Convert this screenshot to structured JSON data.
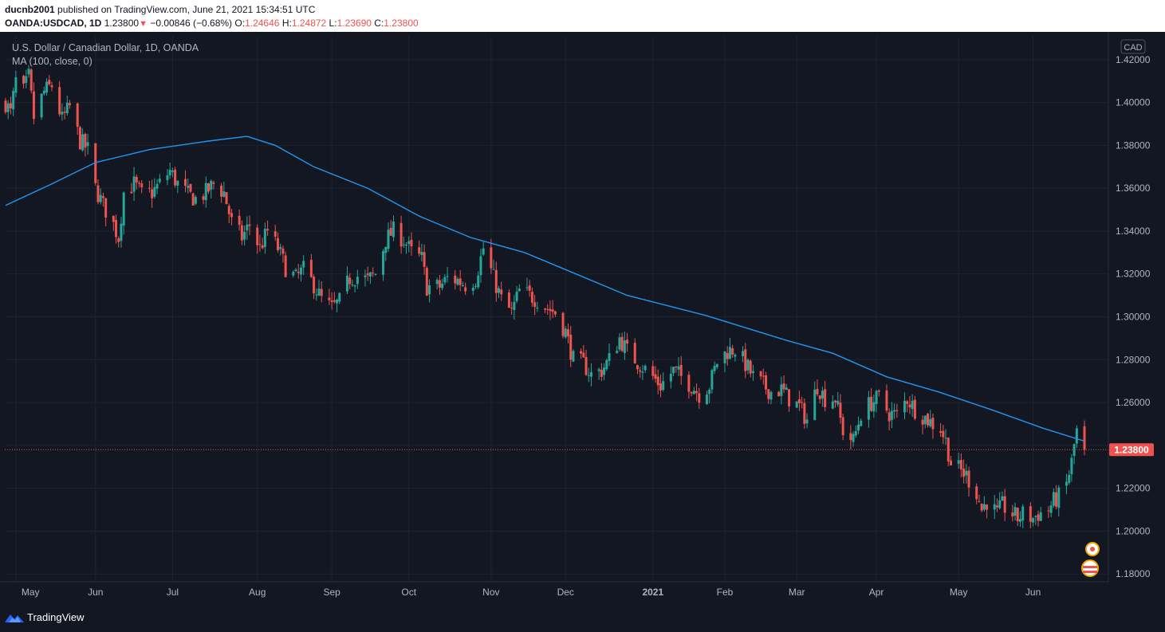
{
  "header": {
    "user": "ducnb2001",
    "published": "published on TradingView.com, June 21, 2021 15:34:51 UTC",
    "symbol": "OANDA:USDCAD, 1D",
    "last": "1.23800",
    "change": "−0.00846 (−0.68%)",
    "o_label": "O:",
    "o": "1.24646",
    "h_label": "H:",
    "h": "1.24872",
    "l_label": "L:",
    "l": "1.23690",
    "c_label": "C:",
    "c": "1.23800"
  },
  "legend": {
    "title": "U.S. Dollar / Canadian Dollar, 1D, OANDA",
    "indicator": "MA (100, close, 0)"
  },
  "footer": {
    "brand": "TradingView"
  },
  "chart_data": {
    "type": "candlestick",
    "currency_label": "CAD",
    "last_price_label": "1.23800",
    "last_price": 1.238,
    "ylim": [
      1.176,
      1.4255
    ],
    "y_ticks": [
      1.18,
      1.2,
      1.22,
      1.24,
      1.26,
      1.28,
      1.3,
      1.32,
      1.34,
      1.36,
      1.38,
      1.4,
      1.42
    ],
    "y_tick_labels": [
      "1.18000",
      "1.20000",
      "1.22000",
      "1.24000",
      "1.26000",
      "1.28000",
      "1.30000",
      "1.32000",
      "1.34000",
      "1.36000",
      "1.38000",
      "1.40000",
      "1.42000"
    ],
    "x_tick_labels": [
      "May",
      "Jun",
      "Jul",
      "Aug",
      "Sep",
      "Oct",
      "Nov",
      "Dec",
      "2021",
      "Feb",
      "Mar",
      "Apr",
      "May",
      "Jun"
    ],
    "x_tick_dates": [
      "2020-05-01",
      "2020-06-01",
      "2020-07-01",
      "2020-08-03",
      "2020-09-01",
      "2020-10-01",
      "2020-11-02",
      "2020-12-01",
      "2021-01-04",
      "2021-02-01",
      "2021-03-01",
      "2021-04-01",
      "2021-05-03",
      "2021-06-01"
    ],
    "close_path": [
      [
        "2020-04-27",
        1.4
      ],
      [
        "2020-04-29",
        1.395
      ],
      [
        "2020-05-01",
        1.41
      ],
      [
        "2020-05-04",
        1.405
      ],
      [
        "2020-05-06",
        1.412
      ],
      [
        "2020-05-08",
        1.393
      ],
      [
        "2020-05-12",
        1.405
      ],
      [
        "2020-05-15",
        1.408
      ],
      [
        "2020-05-19",
        1.392
      ],
      [
        "2020-05-22",
        1.398
      ],
      [
        "2020-05-26",
        1.382
      ],
      [
        "2020-05-29",
        1.378
      ],
      [
        "2020-06-01",
        1.36
      ],
      [
        "2020-06-04",
        1.352
      ],
      [
        "2020-06-08",
        1.343
      ],
      [
        "2020-06-10",
        1.337
      ],
      [
        "2020-06-12",
        1.358
      ],
      [
        "2020-06-16",
        1.362
      ],
      [
        "2020-06-19",
        1.357
      ],
      [
        "2020-06-23",
        1.358
      ],
      [
        "2020-06-26",
        1.362
      ],
      [
        "2020-06-30",
        1.368
      ],
      [
        "2020-07-03",
        1.362
      ],
      [
        "2020-07-07",
        1.357
      ],
      [
        "2020-07-10",
        1.355
      ],
      [
        "2020-07-14",
        1.358
      ],
      [
        "2020-07-17",
        1.362
      ],
      [
        "2020-07-21",
        1.358
      ],
      [
        "2020-07-24",
        1.344
      ],
      [
        "2020-07-28",
        1.337
      ],
      [
        "2020-07-31",
        1.343
      ],
      [
        "2020-08-04",
        1.332
      ],
      [
        "2020-08-07",
        1.34
      ],
      [
        "2020-08-11",
        1.332
      ],
      [
        "2020-08-14",
        1.323
      ],
      [
        "2020-08-18",
        1.318
      ],
      [
        "2020-08-21",
        1.322
      ],
      [
        "2020-08-25",
        1.315
      ],
      [
        "2020-08-28",
        1.308
      ],
      [
        "2020-09-01",
        1.304
      ],
      [
        "2020-09-04",
        1.307
      ],
      [
        "2020-09-08",
        1.318
      ],
      [
        "2020-09-11",
        1.319
      ],
      [
        "2020-09-15",
        1.317
      ],
      [
        "2020-09-18",
        1.32
      ],
      [
        "2020-09-22",
        1.336
      ],
      [
        "2020-09-25",
        1.34
      ],
      [
        "2020-09-29",
        1.336
      ],
      [
        "2020-10-02",
        1.33
      ],
      [
        "2020-10-06",
        1.327
      ],
      [
        "2020-10-08",
        1.314
      ],
      [
        "2020-10-13",
        1.314
      ],
      [
        "2020-10-16",
        1.318
      ],
      [
        "2020-10-20",
        1.317
      ],
      [
        "2020-10-23",
        1.315
      ],
      [
        "2020-10-27",
        1.318
      ],
      [
        "2020-10-30",
        1.332
      ],
      [
        "2020-11-03",
        1.318
      ],
      [
        "2020-11-06",
        1.308
      ],
      [
        "2020-11-10",
        1.302
      ],
      [
        "2020-11-13",
        1.312
      ],
      [
        "2020-11-17",
        1.31
      ],
      [
        "2020-11-20",
        1.308
      ],
      [
        "2020-11-24",
        1.304
      ],
      [
        "2020-11-27",
        1.302
      ],
      [
        "2020-12-01",
        1.293
      ],
      [
        "2020-12-04",
        1.28
      ],
      [
        "2020-12-08",
        1.278
      ],
      [
        "2020-12-11",
        1.273
      ],
      [
        "2020-12-15",
        1.275
      ],
      [
        "2020-12-18",
        1.28
      ],
      [
        "2020-12-22",
        1.29
      ],
      [
        "2020-12-25",
        1.284
      ],
      [
        "2020-12-29",
        1.279
      ],
      [
        "2021-01-04",
        1.272
      ],
      [
        "2021-01-07",
        1.268
      ],
      [
        "2021-01-12",
        1.275
      ],
      [
        "2021-01-15",
        1.272
      ],
      [
        "2021-01-19",
        1.268
      ],
      [
        "2021-01-22",
        1.264
      ],
      [
        "2021-01-26",
        1.268
      ],
      [
        "2021-01-29",
        1.279
      ],
      [
        "2021-02-02",
        1.284
      ],
      [
        "2021-02-05",
        1.285
      ],
      [
        "2021-02-09",
        1.278
      ],
      [
        "2021-02-12",
        1.272
      ],
      [
        "2021-02-16",
        1.268
      ],
      [
        "2021-02-19",
        1.265
      ],
      [
        "2021-02-23",
        1.266
      ],
      [
        "2021-02-26",
        1.262
      ],
      [
        "2021-03-02",
        1.258
      ],
      [
        "2021-03-05",
        1.252
      ],
      [
        "2021-03-09",
        1.268
      ],
      [
        "2021-03-12",
        1.262
      ],
      [
        "2021-03-16",
        1.262
      ],
      [
        "2021-03-19",
        1.247
      ],
      [
        "2021-03-23",
        1.242
      ],
      [
        "2021-03-26",
        1.255
      ],
      [
        "2021-03-30",
        1.26
      ],
      [
        "2021-04-02",
        1.262
      ],
      [
        "2021-04-06",
        1.255
      ],
      [
        "2021-04-09",
        1.254
      ],
      [
        "2021-04-13",
        1.262
      ],
      [
        "2021-04-16",
        1.257
      ],
      [
        "2021-04-20",
        1.253
      ],
      [
        "2021-04-23",
        1.25
      ],
      [
        "2021-04-26",
        1.248
      ],
      [
        "2021-04-28",
        1.242
      ],
      [
        "2021-04-30",
        1.232
      ],
      [
        "2021-05-04",
        1.228
      ],
      [
        "2021-05-06",
        1.226
      ],
      [
        "2021-05-10",
        1.218
      ],
      [
        "2021-05-12",
        1.21
      ],
      [
        "2021-05-14",
        1.214
      ],
      [
        "2021-05-18",
        1.208
      ],
      [
        "2021-05-20",
        1.212
      ],
      [
        "2021-05-24",
        1.208
      ],
      [
        "2021-05-26",
        1.206
      ],
      [
        "2021-05-28",
        1.208
      ],
      [
        "2021-06-01",
        1.206
      ],
      [
        "2021-06-03",
        1.208
      ],
      [
        "2021-06-07",
        1.21
      ],
      [
        "2021-06-09",
        1.214
      ],
      [
        "2021-06-11",
        1.216
      ],
      [
        "2021-06-14",
        1.222
      ],
      [
        "2021-06-16",
        1.232
      ],
      [
        "2021-06-17",
        1.24
      ],
      [
        "2021-06-18",
        1.2465
      ],
      [
        "2021-06-21",
        1.238
      ]
    ],
    "ma_line": {
      "name": "MA (100, close, 0)",
      "color": "#2196f3",
      "points": [
        [
          "2020-04-27",
          1.352
        ],
        [
          "2020-05-15",
          1.362
        ],
        [
          "2020-06-01",
          1.372
        ],
        [
          "2020-06-22",
          1.378
        ],
        [
          "2020-07-15",
          1.382
        ],
        [
          "2020-07-30",
          1.3842
        ],
        [
          "2020-08-10",
          1.38
        ],
        [
          "2020-08-25",
          1.37
        ],
        [
          "2020-09-15",
          1.36
        ],
        [
          "2020-10-05",
          1.347
        ],
        [
          "2020-10-25",
          1.337
        ],
        [
          "2020-11-15",
          1.33
        ],
        [
          "2020-12-05",
          1.32
        ],
        [
          "2020-12-25",
          1.31
        ],
        [
          "2021-01-25",
          1.3005
        ],
        [
          "2021-02-25",
          1.289
        ],
        [
          "2021-03-15",
          1.283
        ],
        [
          "2021-04-05",
          1.272
        ],
        [
          "2021-04-25",
          1.265
        ],
        [
          "2021-05-15",
          1.257
        ],
        [
          "2021-06-05",
          1.248
        ],
        [
          "2021-06-21",
          1.242
        ]
      ]
    },
    "colors": {
      "up": "#26a69a",
      "down": "#ef5350",
      "ma": "#2196f3",
      "grid": "#1e2330",
      "background": "#131722"
    }
  }
}
